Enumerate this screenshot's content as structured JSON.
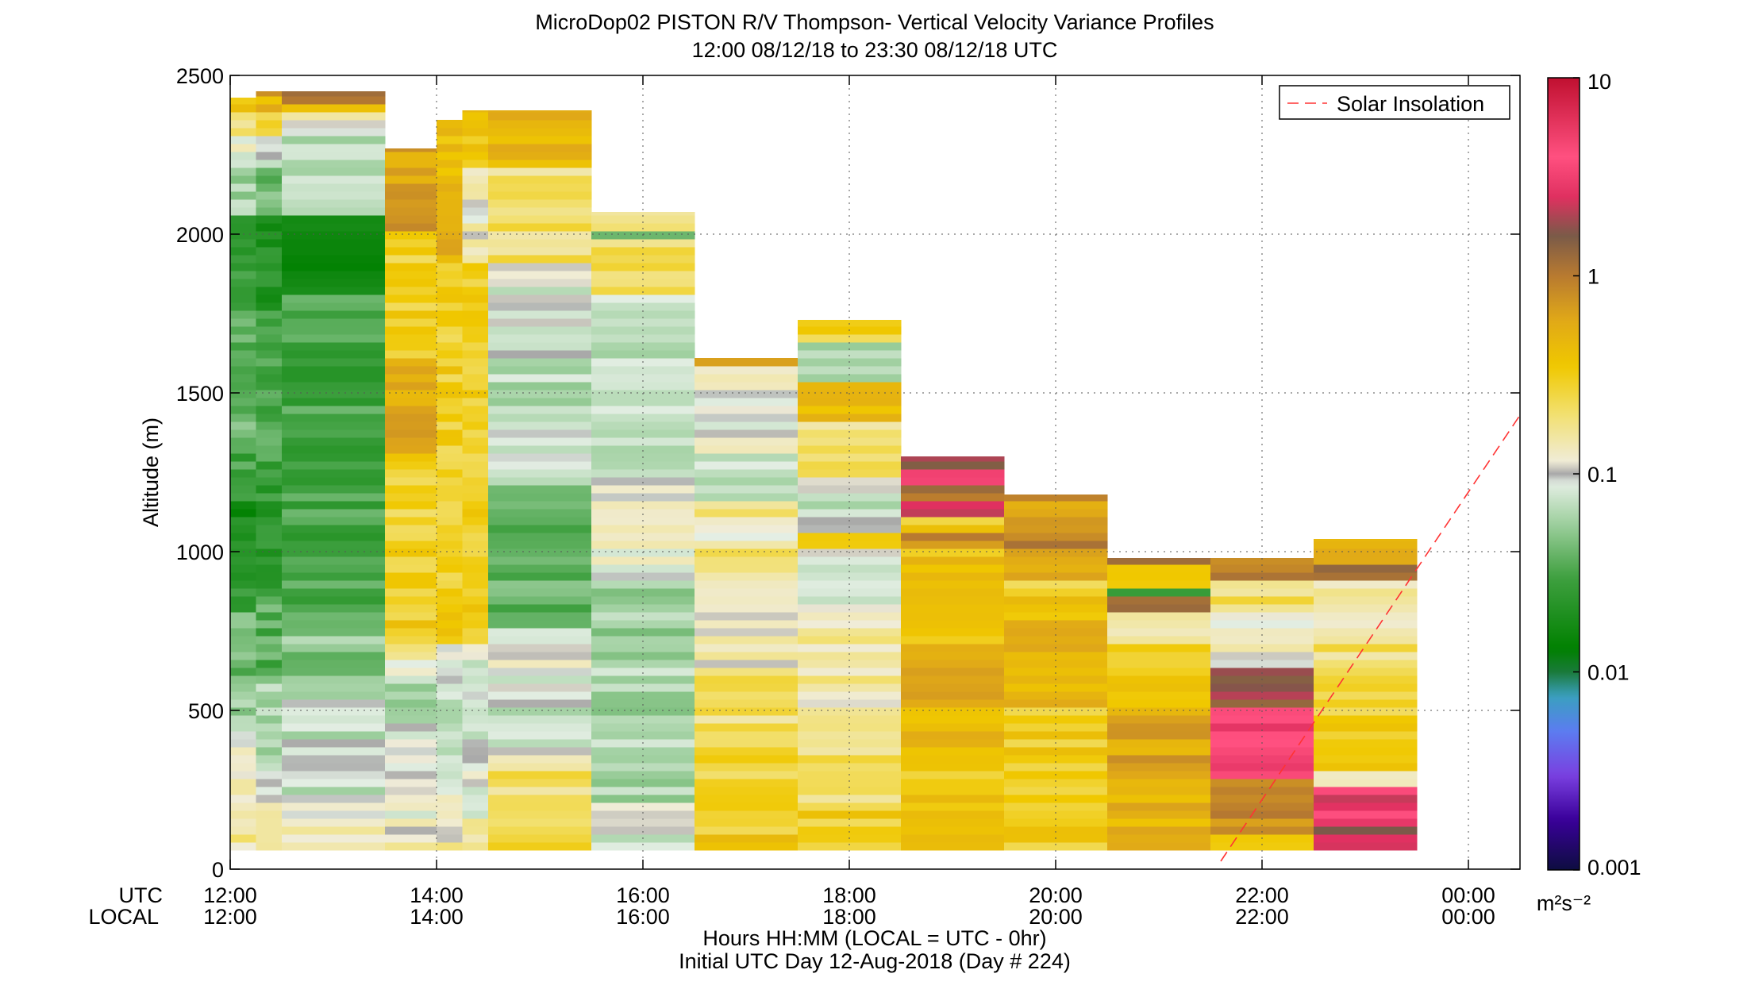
{
  "chart_data": {
    "type": "heatmap",
    "title": "MicroDop02 PISTON R/V Thompson- Vertical Velocity Variance Profiles",
    "subtitle": "12:00 08/12/18 to 23:30 08/12/18  UTC",
    "ylabel": "Altitude (m)",
    "xlabel_line1": "Hours HH:MM  (LOCAL = UTC - 0hr)",
    "xlabel_line2": "Initial UTC Day 12-Aug-2018 (Day # 224)",
    "x_axis_row_labels": [
      "UTC",
      "LOCAL"
    ],
    "xlim": [
      12.0,
      24.5
    ],
    "ylim": [
      0,
      2500
    ],
    "x_ticks": [
      {
        "value": 12,
        "utc": "12:00",
        "local": "12:00"
      },
      {
        "value": 14,
        "utc": "14:00",
        "local": "14:00"
      },
      {
        "value": 16,
        "utc": "16:00",
        "local": "16:00"
      },
      {
        "value": 18,
        "utc": "18:00",
        "local": "18:00"
      },
      {
        "value": 20,
        "utc": "20:00",
        "local": "20:00"
      },
      {
        "value": 22,
        "utc": "22:00",
        "local": "22:00"
      },
      {
        "value": 24,
        "utc": "00:00",
        "local": "00:00"
      }
    ],
    "y_ticks": [
      {
        "value": 0,
        "label": "0"
      },
      {
        "value": 500,
        "label": "500"
      },
      {
        "value": 1000,
        "label": "1000"
      },
      {
        "value": 1500,
        "label": "1500"
      },
      {
        "value": 2000,
        "label": "2000"
      },
      {
        "value": 2500,
        "label": "2500"
      }
    ],
    "grid": true,
    "legend": {
      "position": "top-right",
      "entries": [
        {
          "label": "Solar Insolation",
          "color": "#ff3333",
          "style": "dashed"
        }
      ]
    },
    "solar_insolation_line": {
      "x": [
        21.6,
        24.5
      ],
      "y": [
        25,
        1430
      ]
    },
    "colorbar": {
      "scale": "log",
      "range": [
        0.001,
        10
      ],
      "ticks": [
        {
          "value": 0.001,
          "label": "0.001"
        },
        {
          "value": 0.01,
          "label": "0.01"
        },
        {
          "value": 0.1,
          "label": "0.1"
        },
        {
          "value": 1,
          "label": "1"
        },
        {
          "value": 10,
          "label": "10"
        }
      ],
      "units": "m²s⁻²",
      "colormap": [
        {
          "v": 0.001,
          "c": "#0d0d40"
        },
        {
          "v": 0.0018,
          "c": "#3a009a"
        },
        {
          "v": 0.003,
          "c": "#7a40e0"
        },
        {
          "v": 0.005,
          "c": "#5c7cf0"
        },
        {
          "v": 0.0075,
          "c": "#3aa0c0"
        },
        {
          "v": 0.01,
          "c": "#1a7a3a"
        },
        {
          "v": 0.013,
          "c": "#008000"
        },
        {
          "v": 0.03,
          "c": "#3fa040"
        },
        {
          "v": 0.06,
          "c": "#a8d4a8"
        },
        {
          "v": 0.09,
          "c": "#e4eee4"
        },
        {
          "v": 0.1,
          "c": "#a8a8a8"
        },
        {
          "v": 0.115,
          "c": "#f0ecd8"
        },
        {
          "v": 0.2,
          "c": "#f2e070"
        },
        {
          "v": 0.35,
          "c": "#f0c800"
        },
        {
          "v": 0.6,
          "c": "#e0a818"
        },
        {
          "v": 1.0,
          "c": "#b87a30"
        },
        {
          "v": 1.6,
          "c": "#7a5a48"
        },
        {
          "v": 2.5,
          "c": "#e03060"
        },
        {
          "v": 4.0,
          "c": "#ff5080"
        },
        {
          "v": 10,
          "c": "#c01030"
        }
      ]
    },
    "profiles": [
      {
        "x0": 12.0,
        "x1": 12.25,
        "base": 60,
        "top": 2430,
        "dz": 25,
        "segs": [
          [
            60,
            170,
            0.16
          ],
          [
            170,
            290,
            0.13
          ],
          [
            290,
            410,
            0.11
          ],
          [
            410,
            440,
            0.1
          ],
          [
            440,
            560,
            0.06
          ],
          [
            560,
            800,
            0.04
          ],
          [
            800,
            1000,
            0.025
          ],
          [
            1000,
            1150,
            0.018
          ],
          [
            1150,
            1300,
            0.03
          ],
          [
            1300,
            1500,
            0.04
          ],
          [
            1500,
            1750,
            0.035
          ],
          [
            1750,
            2050,
            0.025
          ],
          [
            2050,
            2200,
            0.06
          ],
          [
            2200,
            2300,
            0.1
          ],
          [
            2300,
            2380,
            0.2
          ],
          [
            2380,
            2430,
            0.4
          ]
        ]
      },
      {
        "x0": 12.25,
        "x1": 12.5,
        "base": 60,
        "top": 2450,
        "dz": 25,
        "segs": [
          [
            60,
            320,
            0.12
          ],
          [
            320,
            345,
            0.1
          ],
          [
            345,
            600,
            0.06
          ],
          [
            600,
            850,
            0.035
          ],
          [
            850,
            1250,
            0.025
          ],
          [
            1250,
            1750,
            0.03
          ],
          [
            1750,
            2050,
            0.02
          ],
          [
            2050,
            2200,
            0.04
          ],
          [
            2200,
            2300,
            0.09
          ],
          [
            2300,
            2380,
            0.25
          ],
          [
            2380,
            2430,
            0.5
          ],
          [
            2430,
            2450,
            0.9
          ]
        ]
      },
      {
        "x0": 12.5,
        "x1": 13.5,
        "base": 60,
        "top": 2450,
        "dz": 25,
        "segs": [
          [
            60,
            160,
            0.14
          ],
          [
            160,
            200,
            0.11
          ],
          [
            200,
            225,
            0.1
          ],
          [
            225,
            600,
            0.075
          ],
          [
            600,
            800,
            0.05
          ],
          [
            800,
            1800,
            0.03
          ],
          [
            1800,
            2050,
            0.015
          ],
          [
            2050,
            2300,
            0.06
          ],
          [
            2300,
            2380,
            0.12
          ],
          [
            2380,
            2420,
            0.35
          ],
          [
            2420,
            2450,
            0.9
          ]
        ]
      },
      {
        "x0": 13.5,
        "x1": 14.0,
        "base": 60,
        "top": 2270,
        "dz": 25,
        "segs": [
          [
            60,
            110,
            0.14
          ],
          [
            110,
            170,
            0.12
          ],
          [
            170,
            300,
            0.1
          ],
          [
            300,
            450,
            0.09
          ],
          [
            450,
            600,
            0.06
          ],
          [
            600,
            650,
            0.1
          ],
          [
            650,
            700,
            0.15
          ],
          [
            700,
            900,
            0.32
          ],
          [
            900,
            1300,
            0.28
          ],
          [
            1300,
            1600,
            0.6
          ],
          [
            1600,
            1900,
            0.3
          ],
          [
            1900,
            2000,
            0.28
          ],
          [
            2000,
            2030,
            0.9
          ],
          [
            2030,
            2270,
            0.6
          ]
        ]
      },
      {
        "x0": 14.0,
        "x1": 14.25,
        "base": 60,
        "top": 2360,
        "dz": 25,
        "segs": [
          [
            60,
            170,
            0.14
          ],
          [
            170,
            300,
            0.1
          ],
          [
            300,
            650,
            0.08
          ],
          [
            650,
            700,
            0.1
          ],
          [
            700,
            1900,
            0.3
          ],
          [
            1900,
            2030,
            0.5
          ],
          [
            2030,
            2360,
            0.4
          ]
        ]
      },
      {
        "x0": 14.25,
        "x1": 14.5,
        "base": 60,
        "top": 2390,
        "dz": 25,
        "segs": [
          [
            60,
            170,
            0.14
          ],
          [
            170,
            300,
            0.1
          ],
          [
            300,
            650,
            0.08
          ],
          [
            650,
            700,
            0.1
          ],
          [
            700,
            1900,
            0.3
          ],
          [
            1900,
            2200,
            0.12
          ],
          [
            2200,
            2390,
            0.35
          ]
        ]
      },
      {
        "x0": 14.5,
        "x1": 15.5,
        "base": 60,
        "top": 2390,
        "dz": 25,
        "segs": [
          [
            60,
            110,
            0.35
          ],
          [
            110,
            300,
            0.2
          ],
          [
            300,
            360,
            0.12
          ],
          [
            360,
            380,
            0.1
          ],
          [
            380,
            640,
            0.08
          ],
          [
            640,
            750,
            0.1
          ],
          [
            750,
            1200,
            0.04
          ],
          [
            1200,
            1600,
            0.07
          ],
          [
            1600,
            1620,
            0.1
          ],
          [
            1620,
            1900,
            0.09
          ],
          [
            1900,
            2200,
            0.2
          ],
          [
            2200,
            2390,
            0.5
          ]
        ]
      },
      {
        "x0": 15.5,
        "x1": 16.5,
        "base": 60,
        "top": 2070,
        "dz": 25,
        "segs": [
          [
            60,
            170,
            0.08
          ],
          [
            170,
            200,
            0.1
          ],
          [
            200,
            900,
            0.06
          ],
          [
            900,
            950,
            0.1
          ],
          [
            950,
            1200,
            0.11
          ],
          [
            1200,
            1260,
            0.1
          ],
          [
            1260,
            1500,
            0.08
          ],
          [
            1500,
            1800,
            0.07
          ],
          [
            1800,
            1990,
            0.2
          ],
          [
            1990,
            2020,
            0.03
          ],
          [
            2020,
            2070,
            0.15
          ]
        ]
      },
      {
        "x0": 16.5,
        "x1": 17.5,
        "base": 60,
        "top": 1610,
        "dz": 25,
        "segs": [
          [
            60,
            100,
            0.35
          ],
          [
            100,
            400,
            0.28
          ],
          [
            400,
            600,
            0.2
          ],
          [
            600,
            900,
            0.14
          ],
          [
            900,
            1000,
            0.2
          ],
          [
            1000,
            1100,
            0.12
          ],
          [
            1100,
            1150,
            0.2
          ],
          [
            1150,
            1300,
            0.08
          ],
          [
            1300,
            1500,
            0.1
          ],
          [
            1500,
            1580,
            0.15
          ],
          [
            1580,
            1610,
            0.9
          ]
        ]
      },
      {
        "x0": 17.5,
        "x1": 18.5,
        "base": 60,
        "top": 1730,
        "dz": 25,
        "segs": [
          [
            60,
            200,
            0.3
          ],
          [
            200,
            500,
            0.2
          ],
          [
            500,
            750,
            0.15
          ],
          [
            750,
            840,
            0.1
          ],
          [
            840,
            1000,
            0.09
          ],
          [
            1000,
            1050,
            0.3
          ],
          [
            1050,
            1200,
            0.08
          ],
          [
            1200,
            1230,
            0.1
          ],
          [
            1230,
            1400,
            0.2
          ],
          [
            1400,
            1530,
            0.5
          ],
          [
            1530,
            1650,
            0.07
          ],
          [
            1650,
            1730,
            0.3
          ]
        ]
      },
      {
        "x0": 18.5,
        "x1": 19.5,
        "base": 60,
        "top": 1300,
        "dz": 25,
        "segs": [
          [
            60,
            300,
            0.35
          ],
          [
            300,
            700,
            0.5
          ],
          [
            700,
            1000,
            0.4
          ],
          [
            1000,
            1050,
            0.9
          ],
          [
            1050,
            1100,
            0.3
          ],
          [
            1100,
            1150,
            3.0
          ],
          [
            1150,
            1200,
            1.3
          ],
          [
            1200,
            1270,
            3.0
          ],
          [
            1270,
            1300,
            1.6
          ]
        ]
      },
      {
        "x0": 19.5,
        "x1": 20.5,
        "base": 60,
        "top": 1180,
        "dz": 25,
        "segs": [
          [
            60,
            500,
            0.32
          ],
          [
            500,
            850,
            0.45
          ],
          [
            850,
            900,
            0.28
          ],
          [
            900,
            1000,
            0.6
          ],
          [
            1000,
            1100,
            0.9
          ],
          [
            1100,
            1180,
            0.7
          ]
        ]
      },
      {
        "x0": 20.5,
        "x1": 21.5,
        "base": 60,
        "top": 980,
        "dz": 25,
        "segs": [
          [
            60,
            300,
            0.5
          ],
          [
            300,
            500,
            0.6
          ],
          [
            500,
            700,
            0.35
          ],
          [
            700,
            800,
            0.12
          ],
          [
            800,
            850,
            1.0
          ],
          [
            850,
            880,
            0.03
          ],
          [
            880,
            950,
            0.3
          ],
          [
            950,
            980,
            1.2
          ]
        ]
      },
      {
        "x0": 21.5,
        "x1": 22.5,
        "base": 60,
        "top": 980,
        "dz": 25,
        "segs": [
          [
            60,
            100,
            0.3
          ],
          [
            100,
            200,
            0.8
          ],
          [
            200,
            290,
            1.0
          ],
          [
            290,
            500,
            3.5
          ],
          [
            500,
            600,
            1.8
          ],
          [
            600,
            640,
            2.5
          ],
          [
            640,
            700,
            0.11
          ],
          [
            700,
            800,
            0.12
          ],
          [
            800,
            900,
            0.2
          ],
          [
            900,
            960,
            1.0
          ],
          [
            960,
            980,
            0.6
          ]
        ]
      },
      {
        "x0": 22.5,
        "x1": 23.5,
        "base": 60,
        "top": 1040,
        "dz": 25,
        "segs": [
          [
            60,
            100,
            3.0
          ],
          [
            100,
            140,
            1.3
          ],
          [
            140,
            260,
            3.0
          ],
          [
            260,
            300,
            0.14
          ],
          [
            300,
            600,
            0.3
          ],
          [
            600,
            700,
            0.2
          ],
          [
            700,
            800,
            0.12
          ],
          [
            800,
            900,
            0.14
          ],
          [
            900,
            960,
            1.0
          ],
          [
            960,
            1010,
            0.5
          ],
          [
            1010,
            1040,
            0.4
          ]
        ]
      }
    ]
  }
}
